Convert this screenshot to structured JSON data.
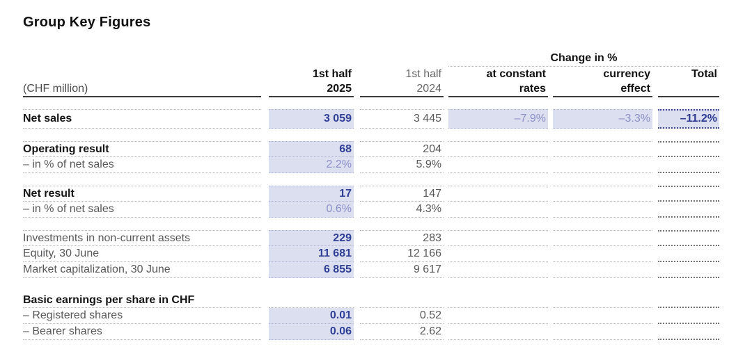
{
  "title": "Group Key Figures",
  "table": {
    "unit_label": "(CHF million)",
    "change_header": "Change in %",
    "columns": {
      "col_2025": {
        "line1": "1st half",
        "line2": "2025"
      },
      "col_2024": {
        "line1": "1st half",
        "line2": "2024"
      },
      "col_rates": {
        "line1": "at constant",
        "line2": "rates"
      },
      "col_effect": {
        "line1": "currency",
        "line2": "effect"
      },
      "col_total": {
        "line1": "Total",
        "line2": ""
      }
    },
    "groups": [
      {
        "id": "net-sales",
        "rows": [
          {
            "label": "Net sales",
            "bold": true,
            "tall": true,
            "v2025": "3 059",
            "v2025_style": "num",
            "v2024": "3 445",
            "rates": "–7.9%",
            "effect": "–3.3%",
            "total": "–11.2%"
          }
        ]
      },
      {
        "id": "operating-result",
        "rows": [
          {
            "label": "Operating result",
            "bold": true,
            "v2025": "68",
            "v2025_style": "num",
            "v2024": "204"
          },
          {
            "label": "– in % of net sales",
            "bold": false,
            "v2025": "2.2%",
            "v2025_style": "pct",
            "v2024": "5.9%"
          }
        ]
      },
      {
        "id": "net-result",
        "rows": [
          {
            "label": "Net result",
            "bold": true,
            "v2025": "17",
            "v2025_style": "num",
            "v2024": "147"
          },
          {
            "label": "– in % of net sales",
            "bold": false,
            "v2025": "0.6%",
            "v2025_style": "pct",
            "v2024": "4.3%"
          }
        ]
      },
      {
        "id": "balance-items",
        "rows": [
          {
            "label": "Investments in non-current assets",
            "bold": false,
            "v2025": "229",
            "v2025_style": "num",
            "v2024": "283"
          },
          {
            "label": "Equity, 30 June",
            "bold": false,
            "v2025": "11 681",
            "v2025_style": "num",
            "v2024": "12 166"
          },
          {
            "label": "Market capitalization, 30 June",
            "bold": false,
            "v2025": "6 855",
            "v2025_style": "num",
            "v2024": "9 617"
          }
        ]
      },
      {
        "id": "earnings-per-share",
        "no_top_border": true,
        "rows": [
          {
            "label": "Basic earnings per share in CHF",
            "bold": true,
            "section_title": true
          },
          {
            "label": "– Registered shares",
            "bold": false,
            "v2025": "0.01",
            "v2025_style": "num",
            "v2024": "0.52"
          },
          {
            "label": "– Bearer shares",
            "bold": false,
            "v2025": "0.06",
            "v2025_style": "num",
            "v2024": "2.62"
          }
        ]
      }
    ]
  },
  "colors": {
    "value_blue": "#2f3f96",
    "soft_blue": "#8a91c8",
    "highlight_bg": "#dcdff0",
    "text_gray": "#58585a",
    "text_black": "#141414",
    "dotted_gray": "#b4b4b4",
    "dotted_total": "#757575"
  }
}
